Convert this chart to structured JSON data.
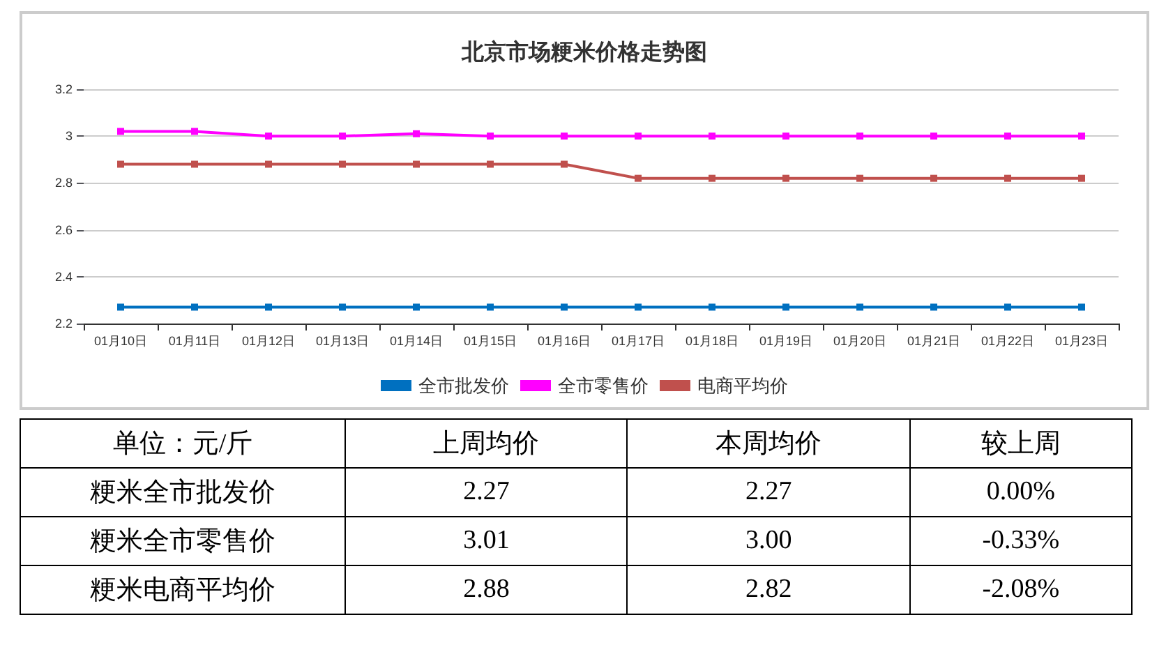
{
  "chart_data": [
    {
      "type": "line",
      "title": "北京市场粳米价格走势图",
      "categories": [
        "01月10日",
        "01月11日",
        "01月12日",
        "01月13日",
        "01月14日",
        "01月15日",
        "01月16日",
        "01月17日",
        "01月18日",
        "01月19日",
        "01月20日",
        "01月21日",
        "01月22日",
        "01月23日"
      ],
      "series": [
        {
          "name": "全市批发价",
          "color": "#0070c0",
          "values": [
            2.27,
            2.27,
            2.27,
            2.27,
            2.27,
            2.27,
            2.27,
            2.27,
            2.27,
            2.27,
            2.27,
            2.27,
            2.27,
            2.27
          ]
        },
        {
          "name": "全市零售价",
          "color": "#ff00ff",
          "values": [
            3.02,
            3.02,
            3.0,
            3.0,
            3.01,
            3.0,
            3.0,
            3.0,
            3.0,
            3.0,
            3.0,
            3.0,
            3.0,
            3.0
          ]
        },
        {
          "name": "电商平均价",
          "color": "#c0504d",
          "values": [
            2.88,
            2.88,
            2.88,
            2.88,
            2.88,
            2.88,
            2.88,
            2.82,
            2.82,
            2.82,
            2.82,
            2.82,
            2.82,
            2.82
          ]
        }
      ],
      "ylim": [
        2.2,
        3.2
      ],
      "yticks": [
        2.2,
        2.4,
        2.6,
        2.8,
        3,
        3.2
      ],
      "grid": "y",
      "legend": "bottom",
      "marker": "square"
    },
    {
      "type": "other",
      "categories": [
        "单位：元/斤",
        "上周均价",
        "本周均价",
        "较上周"
      ],
      "y_categories": [
        "粳米全市批发价",
        "粳米全市零售价",
        "粳米电商平均价"
      ],
      "cell_labels": [
        [
          "2.27",
          "2.27",
          "0.00%"
        ],
        [
          "3.01",
          "3.00",
          "-0.33%"
        ],
        [
          "2.88",
          "2.82",
          "-2.08%"
        ]
      ]
    }
  ]
}
